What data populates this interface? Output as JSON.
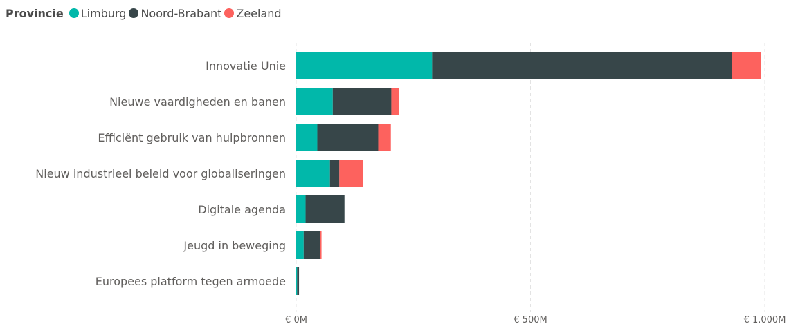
{
  "legend": {
    "title": "Provincie"
  },
  "colors": {
    "Limburg": "#01b8aa",
    "Noord-Brabant": "#374649",
    "Zeeland": "#fd625e"
  },
  "chart_data": {
    "type": "bar",
    "orientation": "horizontal",
    "stacked": true,
    "legend_title": "Provincie",
    "legend_position": "top-left",
    "categories": [
      "Innovatie Unie",
      "Nieuwe vaardigheden en banen",
      "Efficiënt gebruik van hulpbronnen",
      "Nieuw industrieel beleid voor globaliseringen",
      "Digitale agenda",
      "Jeugd in beweging",
      "Europees platform tegen armoede"
    ],
    "series": [
      {
        "name": "Limburg",
        "values": [
          290,
          78,
          45,
          72,
          20,
          16,
          2
        ]
      },
      {
        "name": "Noord-Brabant",
        "values": [
          640,
          125,
          130,
          20,
          83,
          35,
          4
        ]
      },
      {
        "name": "Zeeland",
        "values": [
          62,
          17,
          27,
          51,
          0,
          3,
          0
        ]
      }
    ],
    "x_ticks": [
      0,
      500,
      1000
    ],
    "x_tick_labels": [
      "€ 0M",
      "€ 500M",
      "€ 1.000M"
    ],
    "xlim": [
      0,
      1000
    ],
    "grid": true
  }
}
